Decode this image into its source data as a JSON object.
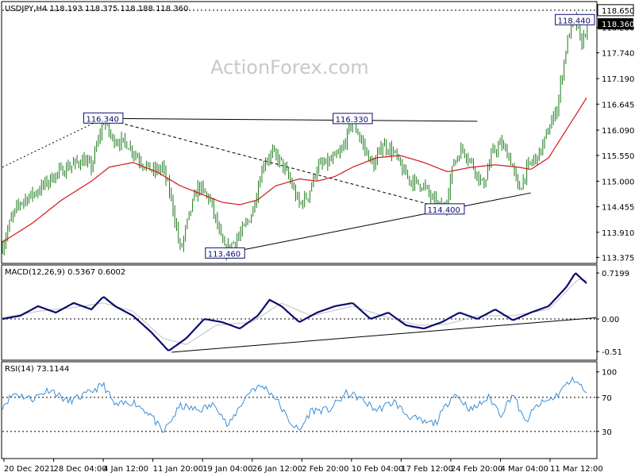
{
  "header": {
    "main_title": "USDJPY,H4 118.193 118.375 118.188 118.360",
    "macd_title": "MACD(12,26,9) 0.5367 0.6002",
    "rsi_title": "RSI(14) 73.1144"
  },
  "watermark": "ActionForex.com",
  "colors": {
    "price": "#1c7a1c",
    "ema": "#d01818",
    "macd_line": "#0d0d6e",
    "signal_line": "#c0c0c0",
    "rsi_line": "#3a8fd6",
    "label_text": "#0d0d6e",
    "trend_line": "#000000"
  },
  "chart_data": [
    {
      "type": "line",
      "name": "price",
      "x_labels": [
        "20 Dec 2021",
        "28 Dec 04:00",
        "4 Jan 12:00",
        "11 Jan 20:00",
        "19 Jan 04:00",
        "26 Jan 12:00",
        "2 Feb 20:00",
        "10 Feb 04:00",
        "17 Feb 12:00",
        "24 Feb 20:00",
        "4 Mar 04:00",
        "11 Mar 12:00"
      ],
      "y_ticks": [
        113.375,
        113.91,
        114.455,
        115.0,
        115.55,
        116.09,
        116.645,
        117.19,
        117.74,
        118.28
      ],
      "ylim": [
        113.28,
        118.8
      ],
      "price_tags": [
        {
          "label": "118.650",
          "value": 118.65,
          "style": "dotted"
        },
        {
          "label": "118.360",
          "value": 118.36,
          "style": "current"
        }
      ],
      "annotations": [
        {
          "label": "116.340",
          "x": 0.17,
          "value": 116.34
        },
        {
          "label": "116.330",
          "x": 0.59,
          "value": 116.33
        },
        {
          "label": "113.460",
          "x": 0.375,
          "value": 113.46
        },
        {
          "label": "114.400",
          "x": 0.745,
          "value": 114.4
        },
        {
          "label": "118.440",
          "x": 0.965,
          "value": 118.44
        }
      ],
      "price_keypoints": [
        [
          0.0,
          113.6
        ],
        [
          0.015,
          114.2
        ],
        [
          0.03,
          114.55
        ],
        [
          0.06,
          114.8
        ],
        [
          0.085,
          115.1
        ],
        [
          0.11,
          115.3
        ],
        [
          0.135,
          115.45
        ],
        [
          0.15,
          115.3
        ],
        [
          0.17,
          116.3
        ],
        [
          0.185,
          115.9
        ],
        [
          0.21,
          115.8
        ],
        [
          0.235,
          115.4
        ],
        [
          0.255,
          115.2
        ],
        [
          0.27,
          115.3
        ],
        [
          0.285,
          114.6
        ],
        [
          0.3,
          113.5
        ],
        [
          0.315,
          114.3
        ],
        [
          0.33,
          114.9
        ],
        [
          0.35,
          114.6
        ],
        [
          0.365,
          113.9
        ],
        [
          0.375,
          113.5
        ],
        [
          0.4,
          113.85
        ],
        [
          0.42,
          114.3
        ],
        [
          0.44,
          115.4
        ],
        [
          0.455,
          115.6
        ],
        [
          0.47,
          115.4
        ],
        [
          0.485,
          115.0
        ],
        [
          0.5,
          114.5
        ],
        [
          0.515,
          114.7
        ],
        [
          0.53,
          115.3
        ],
        [
          0.55,
          115.4
        ],
        [
          0.57,
          115.6
        ],
        [
          0.59,
          116.3
        ],
        [
          0.61,
          115.7
        ],
        [
          0.625,
          115.3
        ],
        [
          0.64,
          115.8
        ],
        [
          0.66,
          115.6
        ],
        [
          0.675,
          115.2
        ],
        [
          0.69,
          115.0
        ],
        [
          0.71,
          114.9
        ],
        [
          0.73,
          114.5
        ],
        [
          0.745,
          114.4
        ],
        [
          0.76,
          115.4
        ],
        [
          0.775,
          115.7
        ],
        [
          0.79,
          115.4
        ],
        [
          0.81,
          114.9
        ],
        [
          0.825,
          115.6
        ],
        [
          0.84,
          115.8
        ],
        [
          0.855,
          115.5
        ],
        [
          0.87,
          114.8
        ],
        [
          0.885,
          115.3
        ],
        [
          0.905,
          115.6
        ],
        [
          0.92,
          116.1
        ],
        [
          0.935,
          116.6
        ],
        [
          0.945,
          117.5
        ],
        [
          0.955,
          118.2
        ],
        [
          0.965,
          118.45
        ],
        [
          0.975,
          117.9
        ],
        [
          0.985,
          118.36
        ]
      ],
      "ema_keypoints": [
        [
          0.0,
          113.7
        ],
        [
          0.05,
          114.1
        ],
        [
          0.1,
          114.6
        ],
        [
          0.15,
          115.0
        ],
        [
          0.18,
          115.3
        ],
        [
          0.22,
          115.4
        ],
        [
          0.26,
          115.2
        ],
        [
          0.3,
          114.9
        ],
        [
          0.34,
          114.7
        ],
        [
          0.37,
          114.55
        ],
        [
          0.4,
          114.5
        ],
        [
          0.43,
          114.6
        ],
        [
          0.46,
          114.9
        ],
        [
          0.5,
          115.05
        ],
        [
          0.53,
          115.0
        ],
        [
          0.56,
          115.1
        ],
        [
          0.59,
          115.3
        ],
        [
          0.63,
          115.5
        ],
        [
          0.67,
          115.55
        ],
        [
          0.71,
          115.4
        ],
        [
          0.75,
          115.2
        ],
        [
          0.79,
          115.3
        ],
        [
          0.83,
          115.35
        ],
        [
          0.87,
          115.3
        ],
        [
          0.89,
          115.25
        ],
        [
          0.92,
          115.5
        ],
        [
          0.95,
          116.1
        ],
        [
          0.985,
          116.8
        ]
      ],
      "trend_lines": [
        {
          "from": [
            0.0,
            115.3
          ],
          "to": [
            0.17,
            116.34
          ],
          "style": "dotted"
        },
        {
          "from": [
            0.17,
            116.34
          ],
          "to": [
            0.8,
            116.28
          ],
          "style": "solid"
        },
        {
          "from": [
            0.17,
            116.34
          ],
          "to": [
            0.745,
            114.42
          ],
          "style": "dashed"
        },
        {
          "from": [
            0.375,
            113.46
          ],
          "to": [
            0.89,
            114.75
          ],
          "style": "solid"
        }
      ]
    },
    {
      "type": "line",
      "name": "MACD(12,26,9)",
      "y_ticks": [
        0.7199,
        0.0,
        -0.51
      ],
      "ylim": [
        -0.62,
        0.82
      ],
      "macd_keypoints": [
        [
          0.0,
          0.0
        ],
        [
          0.03,
          0.05
        ],
        [
          0.06,
          0.2
        ],
        [
          0.09,
          0.1
        ],
        [
          0.12,
          0.25
        ],
        [
          0.15,
          0.15
        ],
        [
          0.17,
          0.35
        ],
        [
          0.19,
          0.2
        ],
        [
          0.22,
          0.05
        ],
        [
          0.25,
          -0.2
        ],
        [
          0.28,
          -0.5
        ],
        [
          0.31,
          -0.3
        ],
        [
          0.34,
          0.0
        ],
        [
          0.37,
          -0.05
        ],
        [
          0.4,
          -0.15
        ],
        [
          0.43,
          0.05
        ],
        [
          0.45,
          0.3
        ],
        [
          0.47,
          0.2
        ],
        [
          0.5,
          -0.05
        ],
        [
          0.53,
          0.1
        ],
        [
          0.56,
          0.2
        ],
        [
          0.59,
          0.25
        ],
        [
          0.62,
          0.0
        ],
        [
          0.65,
          0.1
        ],
        [
          0.68,
          -0.1
        ],
        [
          0.71,
          -0.15
        ],
        [
          0.74,
          -0.05
        ],
        [
          0.77,
          0.1
        ],
        [
          0.8,
          0.0
        ],
        [
          0.83,
          0.15
        ],
        [
          0.86,
          -0.02
        ],
        [
          0.89,
          0.1
        ],
        [
          0.92,
          0.2
        ],
        [
          0.95,
          0.5
        ],
        [
          0.965,
          0.72
        ],
        [
          0.985,
          0.55
        ]
      ],
      "signal_keypoints": [
        [
          0.0,
          0.02
        ],
        [
          0.06,
          0.12
        ],
        [
          0.12,
          0.18
        ],
        [
          0.17,
          0.25
        ],
        [
          0.22,
          0.12
        ],
        [
          0.27,
          -0.3
        ],
        [
          0.31,
          -0.4
        ],
        [
          0.36,
          -0.1
        ],
        [
          0.42,
          -0.05
        ],
        [
          0.47,
          0.25
        ],
        [
          0.52,
          0.05
        ],
        [
          0.59,
          0.2
        ],
        [
          0.64,
          0.05
        ],
        [
          0.7,
          -0.1
        ],
        [
          0.75,
          -0.08
        ],
        [
          0.8,
          0.05
        ],
        [
          0.86,
          0.05
        ],
        [
          0.92,
          0.15
        ],
        [
          0.97,
          0.62
        ],
        [
          0.985,
          0.6
        ]
      ],
      "trend_line": {
        "from": [
          0.285,
          -0.52
        ],
        "to": [
          1.0,
          0.02
        ]
      }
    },
    {
      "type": "line",
      "name": "RSI(14)",
      "y_ticks": [
        100,
        70,
        30
      ],
      "ylim": [
        0,
        110
      ],
      "rsi_keypoints": [
        [
          0.0,
          60
        ],
        [
          0.02,
          75
        ],
        [
          0.05,
          68
        ],
        [
          0.08,
          80
        ],
        [
          0.11,
          65
        ],
        [
          0.14,
          73
        ],
        [
          0.17,
          85
        ],
        [
          0.19,
          60
        ],
        [
          0.22,
          65
        ],
        [
          0.25,
          50
        ],
        [
          0.27,
          28
        ],
        [
          0.3,
          60
        ],
        [
          0.33,
          55
        ],
        [
          0.36,
          62
        ],
        [
          0.38,
          35
        ],
        [
          0.4,
          60
        ],
        [
          0.42,
          80
        ],
        [
          0.44,
          83
        ],
        [
          0.46,
          70
        ],
        [
          0.48,
          45
        ],
        [
          0.5,
          30
        ],
        [
          0.52,
          55
        ],
        [
          0.55,
          55
        ],
        [
          0.58,
          75
        ],
        [
          0.6,
          70
        ],
        [
          0.63,
          55
        ],
        [
          0.66,
          65
        ],
        [
          0.68,
          50
        ],
        [
          0.71,
          40
        ],
        [
          0.73,
          40
        ],
        [
          0.76,
          75
        ],
        [
          0.79,
          55
        ],
        [
          0.82,
          70
        ],
        [
          0.84,
          50
        ],
        [
          0.86,
          75
        ],
        [
          0.88,
          40
        ],
        [
          0.9,
          60
        ],
        [
          0.93,
          70
        ],
        [
          0.95,
          85
        ],
        [
          0.965,
          92
        ],
        [
          0.985,
          73
        ]
      ]
    }
  ]
}
